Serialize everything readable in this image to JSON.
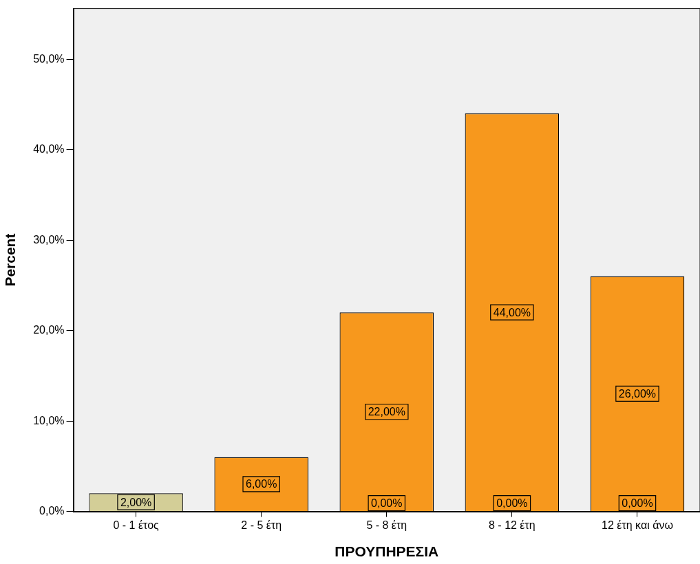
{
  "chart_data": {
    "type": "bar",
    "stacked": true,
    "xlabel": "ΠΡΟΥΠΗΡΕΣΙΑ",
    "ylabel": "Percent",
    "categories": [
      "0 - 1 έτος",
      "2 - 5 έτη",
      "5 - 8 έτη",
      "8 - 12 έτη",
      "12 έτη και άνω"
    ],
    "series": [
      {
        "color": "#d3ce97",
        "values": [
          2,
          null,
          null,
          null,
          null
        ],
        "value_labels": [
          "2,00%",
          null,
          null,
          null,
          null
        ]
      },
      {
        "color": "#f7981d",
        "values": [
          null,
          6,
          22,
          44,
          26
        ],
        "value_labels": [
          null,
          "6,00%",
          "22,00%",
          "44,00%",
          "26,00%"
        ]
      }
    ],
    "ylim": [
      0,
      55.6
    ],
    "yticks": [
      {
        "value": 0,
        "label": "0,0%"
      },
      {
        "value": 10,
        "label": "10,0%"
      },
      {
        "value": 20,
        "label": "20,0%"
      },
      {
        "value": 30,
        "label": "30,0%"
      },
      {
        "value": 40,
        "label": "40,0%"
      },
      {
        "value": 50,
        "label": "50,0%"
      }
    ],
    "annotations": [
      {
        "text": "0,00%",
        "x": "5 - 8 έτη",
        "y": 0
      },
      {
        "text": "0,00%",
        "x": "8 - 12 έτη",
        "y": 0
      },
      {
        "text": "0,00%",
        "x": "12 έτη και άνω",
        "y": 0
      }
    ],
    "grid": false,
    "legend": false
  }
}
